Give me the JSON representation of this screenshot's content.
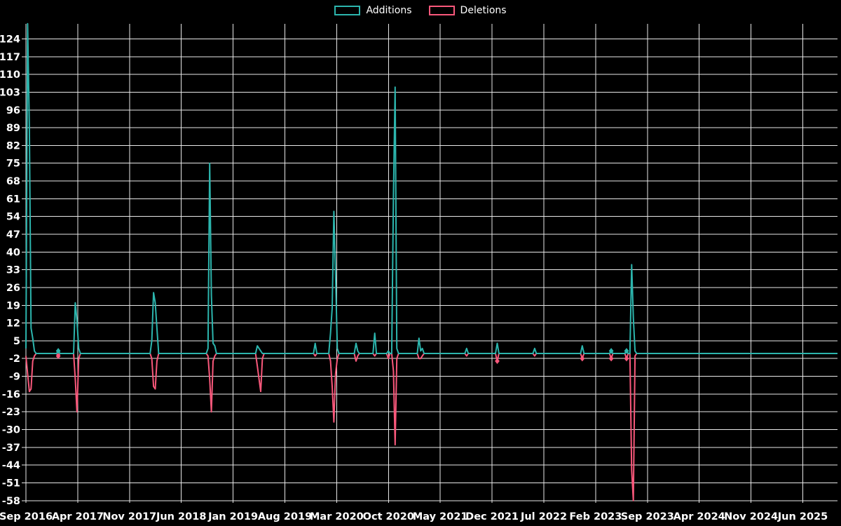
{
  "legend": {
    "items": [
      {
        "label": "Additions",
        "color": "#2cb5ad"
      },
      {
        "label": "Deletions",
        "color": "#f9587b"
      }
    ]
  },
  "colors": {
    "additions": "#2cb5ad",
    "deletions": "#f9587b",
    "grid": "#e8e8e8",
    "background": "#000000",
    "text": "#ffffff"
  },
  "chart_data": {
    "type": "line",
    "title": "",
    "xlabel": "",
    "ylabel": "",
    "grid": true,
    "legend_position": "top-center",
    "background": "#000000",
    "x_axis": {
      "unit": "weeks",
      "tick_labels": [
        "Sep 2016",
        "Apr 2017",
        "Nov 2017",
        "Jun 2018",
        "Jan 2019",
        "Aug 2019",
        "Mar 2020",
        "Oct 2020",
        "May 2021",
        "Dec 2021",
        "Jul 2022",
        "Feb 2023",
        "Sep 2023",
        "Apr 2024",
        "Nov 2024",
        "Jun 2025"
      ]
    },
    "y_axis": {
      "ticks": [
        124,
        117,
        110,
        103,
        96,
        89,
        82,
        75,
        68,
        61,
        54,
        47,
        40,
        33,
        26,
        19,
        12,
        5,
        -2,
        -9,
        -16,
        -23,
        -30,
        -37,
        -44,
        -51,
        -58
      ],
      "min": -58,
      "max": 124,
      "step": 7
    },
    "total_weeks": 477,
    "default_value": 0,
    "series": [
      {
        "name": "Additions",
        "color": "#2cb5ad",
        "points": [
          [
            0,
            2
          ],
          [
            1,
            130
          ],
          [
            2,
            89
          ],
          [
            3,
            10
          ],
          [
            4,
            6
          ],
          [
            5,
            1
          ],
          [
            19,
            1
          ],
          [
            29,
            20
          ],
          [
            30,
            13
          ],
          [
            31,
            2
          ],
          [
            74,
            5
          ],
          [
            75,
            24
          ],
          [
            76,
            20
          ],
          [
            77,
            10
          ],
          [
            107,
            2
          ],
          [
            108,
            75
          ],
          [
            109,
            23
          ],
          [
            110,
            4
          ],
          [
            111,
            3
          ],
          [
            136,
            3
          ],
          [
            137,
            2
          ],
          [
            138,
            1
          ],
          [
            170,
            4
          ],
          [
            179,
            8
          ],
          [
            180,
            18
          ],
          [
            181,
            56
          ],
          [
            182,
            31
          ],
          [
            183,
            2
          ],
          [
            194,
            4
          ],
          [
            195,
            1
          ],
          [
            205,
            8
          ],
          [
            213,
            1
          ],
          [
            216,
            62
          ],
          [
            217,
            105
          ],
          [
            218,
            2
          ],
          [
            231,
            6
          ],
          [
            232,
            1
          ],
          [
            233,
            2
          ],
          [
            259,
            2
          ],
          [
            277,
            4
          ],
          [
            299,
            2
          ],
          [
            327,
            3
          ],
          [
            344,
            1
          ],
          [
            353,
            1
          ],
          [
            356,
            35
          ],
          [
            357,
            14
          ],
          [
            358,
            1
          ]
        ]
      },
      {
        "name": "Deletions",
        "color": "#f9587b",
        "points": [
          [
            0,
            -1
          ],
          [
            1,
            -8
          ],
          [
            2,
            -15
          ],
          [
            3,
            -14
          ],
          [
            4,
            -3
          ],
          [
            5,
            -1
          ],
          [
            19,
            -1
          ],
          [
            29,
            -10
          ],
          [
            30,
            -23
          ],
          [
            31,
            -2
          ],
          [
            74,
            -2
          ],
          [
            75,
            -13
          ],
          [
            76,
            -14
          ],
          [
            77,
            -3
          ],
          [
            107,
            -1
          ],
          [
            108,
            -10
          ],
          [
            109,
            -23
          ],
          [
            110,
            -3
          ],
          [
            111,
            -1
          ],
          [
            136,
            -5
          ],
          [
            137,
            -10
          ],
          [
            138,
            -15
          ],
          [
            139,
            -2
          ],
          [
            170,
            -1
          ],
          [
            179,
            -3
          ],
          [
            180,
            -13
          ],
          [
            181,
            -27
          ],
          [
            182,
            -8
          ],
          [
            183,
            -2
          ],
          [
            194,
            -3
          ],
          [
            195,
            -1
          ],
          [
            205,
            -1
          ],
          [
            213,
            -2
          ],
          [
            216,
            -7
          ],
          [
            217,
            -36
          ],
          [
            218,
            -2
          ],
          [
            231,
            -2
          ],
          [
            232,
            -2
          ],
          [
            233,
            -1
          ],
          [
            259,
            -1
          ],
          [
            277,
            -3
          ],
          [
            299,
            -1
          ],
          [
            327,
            -2
          ],
          [
            344,
            -2
          ],
          [
            353,
            -2
          ],
          [
            356,
            -46
          ],
          [
            357,
            -58
          ],
          [
            358,
            -1
          ]
        ]
      }
    ],
    "markers": {
      "both_series_weeks": [
        19,
        344,
        353
      ],
      "deletions_only_weeks": [
        277,
        327
      ]
    }
  }
}
